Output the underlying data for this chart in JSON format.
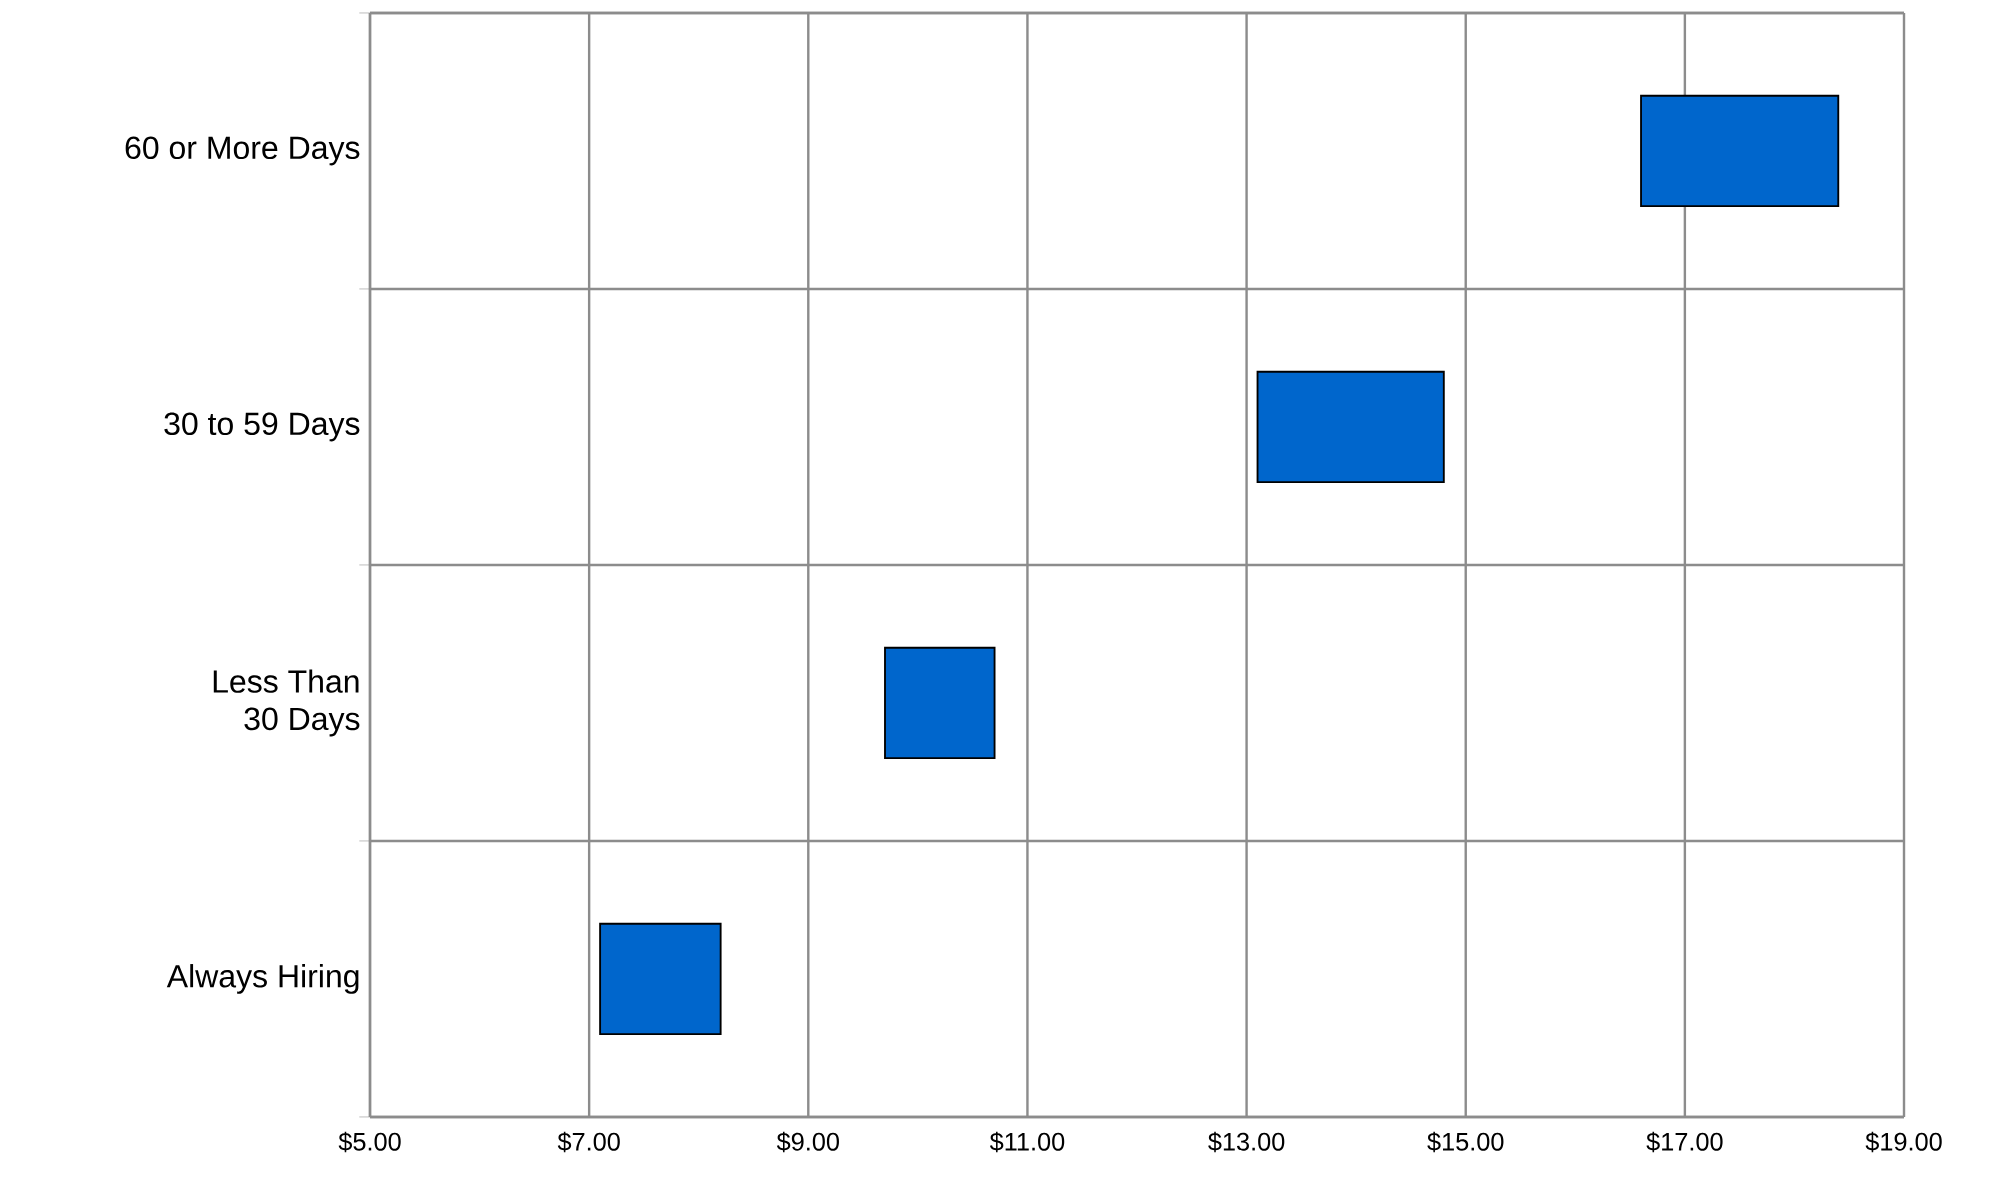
{
  "chart_data": {
    "type": "bar",
    "orientation": "horizontal",
    "categories": [
      "60 or More Days",
      "30 to 59 Days",
      "Less Than\n30 Days",
      "Always Hiring"
    ],
    "base": [
      16.6,
      13.1,
      9.7,
      7.1
    ],
    "values": [
      1.8,
      1.7,
      1.0,
      1.1
    ],
    "color": "#0066cc",
    "xlim": [
      5,
      19
    ],
    "xticks": [
      {
        "value": 5,
        "label": "$5.00"
      },
      {
        "value": 7,
        "label": "$7.00"
      },
      {
        "value": 9,
        "label": "$9.00"
      },
      {
        "value": 11,
        "label": "$11.00"
      },
      {
        "value": 13,
        "label": "$13.00"
      },
      {
        "value": 15,
        "label": "$15.00"
      },
      {
        "value": 17,
        "label": "$17.00"
      },
      {
        "value": 19,
        "label": "$19.00"
      }
    ],
    "grid": true
  }
}
